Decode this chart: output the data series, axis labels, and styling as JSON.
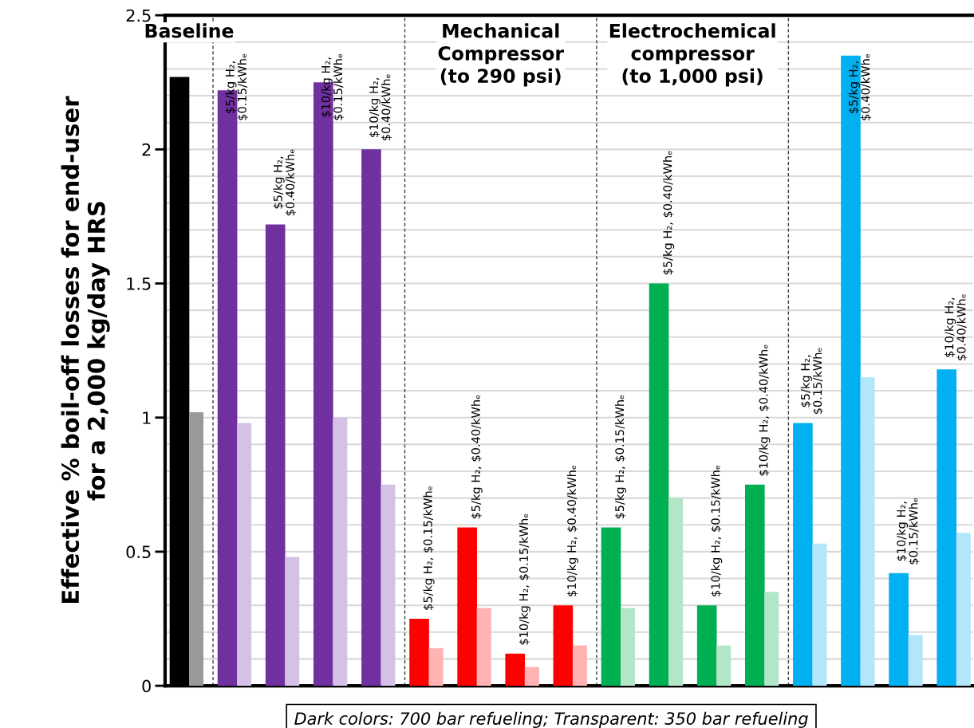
{
  "chart_data": {
    "type": "bar",
    "ylabel": "Effective % boil-off losses for end-user\nfor a 2,000 kg/day HRS",
    "categories": [
      null,
      "$5/kg H₂,\n$0.15/kWhₑ",
      "$5/kg H₂,\n$0.40/kWhₑ",
      "$10/kg H₂,\n$0.15/kWhₑ",
      "$10/kg H₂,\n$0.40/kWhₑ",
      "$5/kg H₂, $0.15/kWhₑ",
      "$5/kg H₂, $0.40/kWhₑ",
      "$10/kg H₂, $0.15/kWhₑ",
      "$10/kg H₂, $0.40/kWhₑ",
      "$5/kg H₂, $0.15/kWhₑ",
      "$5/kg H₂, $0.40/kWhₑ",
      "$10/kg H₂, $0.15/kWhₑ",
      "$10/kg H₂, $0.40/kWhₑ",
      "$5/kg H₂,\n$0.15/kWhₑ",
      "$5/kg H₂,\n$0.40/kWhₑ",
      "$10/kg H₂,\n$0.15/kWhₑ",
      "$10/kg H₂,\n$0.40/kWhₑ"
    ],
    "series": [
      {
        "colors": [
          "#000000",
          "#7030a0",
          "#7030a0",
          "#7030a0",
          "#7030a0",
          "#ff0000",
          "#ff0000",
          "#ff0000",
          "#ff0000",
          "#00b050",
          "#00b050",
          "#00b050",
          "#00b050",
          "#00b0f0",
          "#00b0f0",
          "#00b0f0",
          "#00b0f0"
        ],
        "values": [
          2.27,
          2.22,
          1.72,
          2.25,
          2.0,
          0.25,
          0.59,
          0.12,
          0.3,
          0.59,
          1.5,
          0.3,
          0.75,
          0.98,
          2.35,
          0.42,
          1.18
        ]
      },
      {
        "colors": [
          "#999999",
          "#d5c1e5",
          "#d5c1e5",
          "#d5c1e5",
          "#d5c1e5",
          "#ffb3b3",
          "#ffb3b3",
          "#ffb3b3",
          "#ffb3b3",
          "#b3e6c9",
          "#b3e6c9",
          "#b3e6c9",
          "#b3e6c9",
          "#b3e6fa",
          "#b3e6fa",
          "#b3e6fa",
          "#b3e6fa"
        ],
        "values": [
          1.02,
          0.98,
          0.48,
          1.0,
          0.75,
          0.14,
          0.29,
          0.07,
          0.15,
          0.29,
          0.7,
          0.15,
          0.35,
          0.53,
          1.15,
          0.19,
          0.57
        ]
      }
    ],
    "ylim": [
      0,
      2.5
    ],
    "yticks": [
      0,
      {
        "value": 0.1,
        "label": null
      },
      {
        "value": 0.2,
        "label": null
      },
      {
        "value": 0.3,
        "label": null
      },
      {
        "value": 0.4,
        "label": null
      },
      0.5,
      {
        "value": 0.6,
        "label": null
      },
      {
        "value": 0.7,
        "label": null
      },
      {
        "value": 0.8,
        "label": null
      },
      {
        "value": 0.9,
        "label": null
      },
      1,
      {
        "value": 1.1,
        "label": null
      },
      {
        "value": 1.2,
        "label": null
      },
      {
        "value": 1.3,
        "label": null
      },
      {
        "value": 1.4,
        "label": null
      },
      1.5,
      {
        "value": 1.6,
        "label": null
      },
      {
        "value": 1.7,
        "label": null
      },
      {
        "value": 1.8,
        "label": null
      },
      {
        "value": 1.9,
        "label": null
      },
      2,
      {
        "value": 2.1,
        "label": null
      },
      {
        "value": 2.2,
        "label": null
      },
      {
        "value": 2.3,
        "label": null
      },
      {
        "value": 2.4,
        "label": null
      },
      2.5
    ],
    "grid": "y",
    "annotations": [
      "Baseline",
      "Mechanical\nCompressor\n(to 290 psi)",
      "Electrochemical\ncompressor\n(to 1,000 psi)",
      "Dark colors: 700 bar refueling; Transparent: 350 bar refueling"
    ]
  }
}
